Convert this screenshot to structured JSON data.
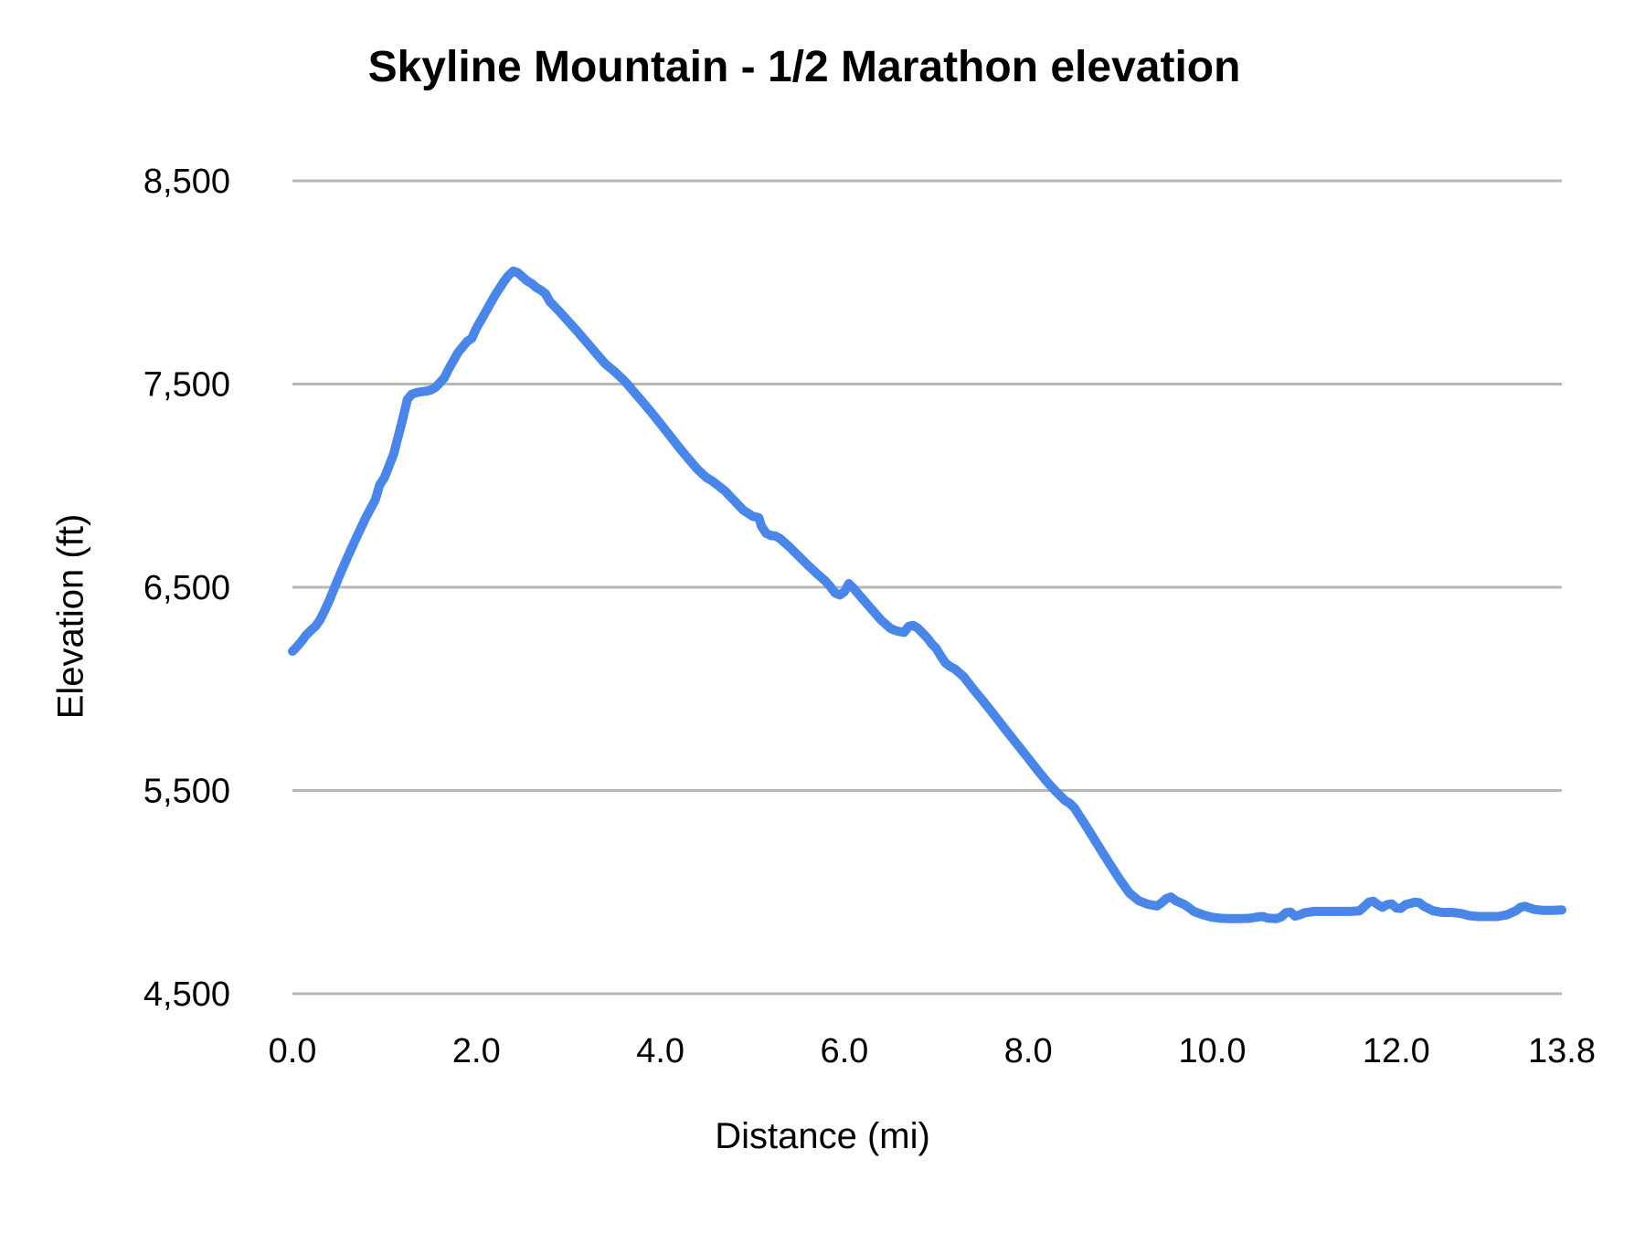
{
  "chart_data": {
    "type": "line",
    "title": "Skyline Mountain - 1/2 Marathon elevation",
    "xlabel": "Distance (mi)",
    "ylabel": "Elevation (ft)",
    "xlim": [
      0,
      13.8
    ],
    "ylim": [
      4500,
      8500
    ],
    "grid": "horizontal-only",
    "legend": "none",
    "line_color": "#4A86E8",
    "gridline_color": "#B7B7B7",
    "text_color": "#000000",
    "y_ticks": [
      {
        "value": 8500,
        "label": "8,500"
      },
      {
        "value": 7500,
        "label": "7,500"
      },
      {
        "value": 6500,
        "label": "6,500"
      },
      {
        "value": 5500,
        "label": "5,500"
      },
      {
        "value": 4500,
        "label": "4,500"
      }
    ],
    "x_ticks": [
      {
        "value": 0,
        "label": "0.0"
      },
      {
        "value": 2,
        "label": "2.0"
      },
      {
        "value": 4,
        "label": "4.0"
      },
      {
        "value": 6,
        "label": "6.0"
      },
      {
        "value": 8,
        "label": "8.0"
      },
      {
        "value": 10,
        "label": "10.0"
      },
      {
        "value": 12,
        "label": "12.0"
      },
      {
        "value": 13.8,
        "label": "13.8"
      }
    ],
    "series": [
      {
        "name": "Elevation",
        "points": [
          [
            0,
            6185
          ],
          [
            0.05,
            6208
          ],
          [
            0.1,
            6235
          ],
          [
            0.15,
            6265
          ],
          [
            0.2,
            6288
          ],
          [
            0.25,
            6308
          ],
          [
            0.3,
            6340
          ],
          [
            0.35,
            6385
          ],
          [
            0.4,
            6435
          ],
          [
            0.45,
            6490
          ],
          [
            0.5,
            6545
          ],
          [
            0.6,
            6650
          ],
          [
            0.7,
            6750
          ],
          [
            0.8,
            6845
          ],
          [
            0.9,
            6930
          ],
          [
            0.95,
            7005
          ],
          [
            1.0,
            7040
          ],
          [
            1.1,
            7155
          ],
          [
            1.2,
            7330
          ],
          [
            1.25,
            7425
          ],
          [
            1.3,
            7450
          ],
          [
            1.35,
            7458
          ],
          [
            1.4,
            7462
          ],
          [
            1.45,
            7465
          ],
          [
            1.5,
            7470
          ],
          [
            1.55,
            7482
          ],
          [
            1.6,
            7505
          ],
          [
            1.65,
            7530
          ],
          [
            1.7,
            7575
          ],
          [
            1.8,
            7655
          ],
          [
            1.9,
            7710
          ],
          [
            1.95,
            7725
          ],
          [
            2.0,
            7775
          ],
          [
            2.1,
            7855
          ],
          [
            2.2,
            7935
          ],
          [
            2.3,
            8005
          ],
          [
            2.35,
            8035
          ],
          [
            2.4,
            8056
          ],
          [
            2.45,
            8048
          ],
          [
            2.5,
            8028
          ],
          [
            2.55,
            8008
          ],
          [
            2.6,
            7995
          ],
          [
            2.65,
            7975
          ],
          [
            2.7,
            7962
          ],
          [
            2.75,
            7945
          ],
          [
            2.8,
            7905
          ],
          [
            2.9,
            7858
          ],
          [
            3.0,
            7808
          ],
          [
            3.1,
            7758
          ],
          [
            3.2,
            7705
          ],
          [
            3.3,
            7652
          ],
          [
            3.4,
            7600
          ],
          [
            3.5,
            7562
          ],
          [
            3.6,
            7520
          ],
          [
            3.64,
            7500
          ],
          [
            3.7,
            7468
          ],
          [
            3.8,
            7415
          ],
          [
            3.9,
            7362
          ],
          [
            4.0,
            7305
          ],
          [
            4.1,
            7248
          ],
          [
            4.2,
            7190
          ],
          [
            4.3,
            7135
          ],
          [
            4.4,
            7082
          ],
          [
            4.5,
            7040
          ],
          [
            4.57,
            7021
          ],
          [
            4.6,
            7010
          ],
          [
            4.7,
            6975
          ],
          [
            4.8,
            6928
          ],
          [
            4.9,
            6880
          ],
          [
            5.0,
            6850
          ],
          [
            5.07,
            6842
          ],
          [
            5.1,
            6800
          ],
          [
            5.15,
            6765
          ],
          [
            5.2,
            6755
          ],
          [
            5.25,
            6752
          ],
          [
            5.3,
            6740
          ],
          [
            5.4,
            6700
          ],
          [
            5.5,
            6655
          ],
          [
            5.6,
            6610
          ],
          [
            5.7,
            6568
          ],
          [
            5.8,
            6528
          ],
          [
            5.85,
            6502
          ],
          [
            5.9,
            6472
          ],
          [
            5.95,
            6462
          ],
          [
            6.0,
            6478
          ],
          [
            6.05,
            6518
          ],
          [
            6.1,
            6495
          ],
          [
            6.2,
            6442
          ],
          [
            6.3,
            6390
          ],
          [
            6.4,
            6338
          ],
          [
            6.5,
            6298
          ],
          [
            6.55,
            6288
          ],
          [
            6.6,
            6282
          ],
          [
            6.65,
            6278
          ],
          [
            6.7,
            6308
          ],
          [
            6.75,
            6312
          ],
          [
            6.8,
            6298
          ],
          [
            6.9,
            6252
          ],
          [
            6.95,
            6222
          ],
          [
            7.0,
            6198
          ],
          [
            7.05,
            6160
          ],
          [
            7.1,
            6128
          ],
          [
            7.15,
            6110
          ],
          [
            7.2,
            6098
          ],
          [
            7.3,
            6058
          ],
          [
            7.4,
            6000
          ],
          [
            7.5,
            5945
          ],
          [
            7.6,
            5888
          ],
          [
            7.7,
            5830
          ],
          [
            7.8,
            5772
          ],
          [
            7.9,
            5715
          ],
          [
            8.0,
            5658
          ],
          [
            8.1,
            5600
          ],
          [
            8.2,
            5545
          ],
          [
            8.3,
            5495
          ],
          [
            8.4,
            5450
          ],
          [
            8.45,
            5437
          ],
          [
            8.5,
            5415
          ],
          [
            8.6,
            5345
          ],
          [
            8.7,
            5272
          ],
          [
            8.8,
            5200
          ],
          [
            8.9,
            5128
          ],
          [
            9.0,
            5058
          ],
          [
            9.1,
            4995
          ],
          [
            9.2,
            4958
          ],
          [
            9.3,
            4940
          ],
          [
            9.4,
            4932
          ],
          [
            9.45,
            4948
          ],
          [
            9.5,
            4968
          ],
          [
            9.55,
            4976
          ],
          [
            9.6,
            4958
          ],
          [
            9.7,
            4938
          ],
          [
            9.8,
            4905
          ],
          [
            9.9,
            4888
          ],
          [
            10.0,
            4876
          ],
          [
            10.1,
            4871
          ],
          [
            10.2,
            4870
          ],
          [
            10.3,
            4870
          ],
          [
            10.4,
            4871
          ],
          [
            10.5,
            4878
          ],
          [
            10.55,
            4880
          ],
          [
            10.6,
            4872
          ],
          [
            10.7,
            4870
          ],
          [
            10.75,
            4878
          ],
          [
            10.8,
            4898
          ],
          [
            10.85,
            4902
          ],
          [
            10.9,
            4882
          ],
          [
            10.95,
            4888
          ],
          [
            11.0,
            4898
          ],
          [
            11.1,
            4905
          ],
          [
            11.2,
            4905
          ],
          [
            11.3,
            4905
          ],
          [
            11.4,
            4905
          ],
          [
            11.5,
            4905
          ],
          [
            11.6,
            4908
          ],
          [
            11.65,
            4928
          ],
          [
            11.7,
            4950
          ],
          [
            11.75,
            4955
          ],
          [
            11.8,
            4938
          ],
          [
            11.85,
            4925
          ],
          [
            11.9,
            4938
          ],
          [
            11.95,
            4942
          ],
          [
            12.0,
            4922
          ],
          [
            12.05,
            4920
          ],
          [
            12.1,
            4938
          ],
          [
            12.2,
            4950
          ],
          [
            12.25,
            4948
          ],
          [
            12.3,
            4930
          ],
          [
            12.4,
            4908
          ],
          [
            12.5,
            4900
          ],
          [
            12.6,
            4900
          ],
          [
            12.7,
            4895
          ],
          [
            12.8,
            4884
          ],
          [
            12.9,
            4880
          ],
          [
            13.0,
            4880
          ],
          [
            13.1,
            4880
          ],
          [
            13.2,
            4888
          ],
          [
            13.3,
            4908
          ],
          [
            13.35,
            4925
          ],
          [
            13.4,
            4930
          ],
          [
            13.45,
            4922
          ],
          [
            13.5,
            4915
          ],
          [
            13.6,
            4910
          ],
          [
            13.7,
            4910
          ],
          [
            13.8,
            4912
          ]
        ]
      }
    ]
  }
}
